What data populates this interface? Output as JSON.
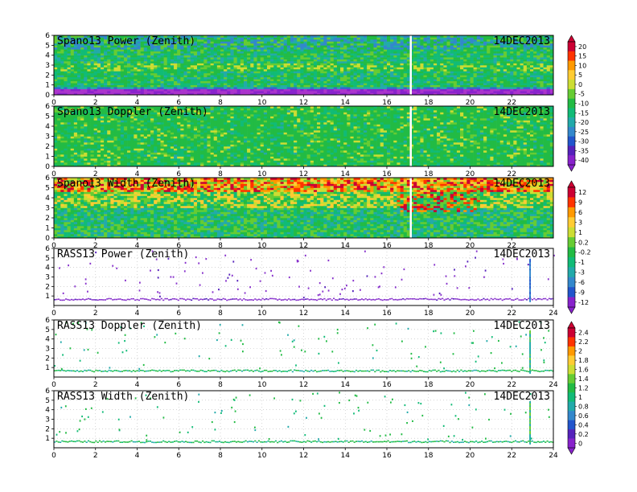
{
  "chart_data": [
    {
      "type": "heatmap",
      "title": "Spano13 Power (Zenith)",
      "date": "14DEC2013",
      "x_ticks": [
        "0",
        "2",
        "4",
        "6",
        "8",
        "10",
        "12",
        "14",
        "16",
        "18",
        "20",
        "22"
      ],
      "y_ticks": [
        "0",
        "1",
        "2",
        "3",
        "4",
        "5",
        "6"
      ],
      "xlim": [
        0,
        24
      ],
      "ylim": [
        0,
        6
      ],
      "profile": "power",
      "colorbar": 0
    },
    {
      "type": "heatmap",
      "title": "Spano13 Doppler (Zenith)",
      "date": "14DEC2013",
      "x_ticks": [
        "0",
        "2",
        "4",
        "6",
        "8",
        "10",
        "12",
        "14",
        "16",
        "18",
        "20",
        "22"
      ],
      "y_ticks": [
        "0",
        "1",
        "2",
        "3",
        "4",
        "5",
        "6"
      ],
      "xlim": [
        0,
        24
      ],
      "ylim": [
        0,
        6
      ],
      "profile": "doppler",
      "colorbar": 0
    },
    {
      "type": "heatmap",
      "title": "Spano13 Width (Zenith)",
      "date": "14DEC2013",
      "x_ticks": [
        "0",
        "2",
        "4",
        "6",
        "8",
        "10",
        "12",
        "14",
        "16",
        "18",
        "20",
        "22"
      ],
      "y_ticks": [
        "0",
        "1",
        "2",
        "3",
        "4",
        "5",
        "6"
      ],
      "xlim": [
        0,
        24
      ],
      "ylim": [
        0,
        6
      ],
      "profile": "width",
      "colorbar": 1
    },
    {
      "type": "scatter",
      "title": "RASS13 Power (Zenith)",
      "date": "14DEC2013",
      "x_ticks": [
        "0",
        "2",
        "4",
        "6",
        "8",
        "10",
        "12",
        "14",
        "16",
        "18",
        "20",
        "22",
        "24"
      ],
      "y_ticks": [
        "1",
        "2",
        "3",
        "4",
        "5",
        "6"
      ],
      "xlim": [
        0,
        24
      ],
      "ylim": [
        0,
        6
      ],
      "profile": "rass_power",
      "colorbar": 1
    },
    {
      "type": "scatter",
      "title": "RASS13 Doppler (Zenith)",
      "date": "14DEC2013",
      "x_ticks": [
        "0",
        "2",
        "4",
        "6",
        "8",
        "10",
        "12",
        "14",
        "16",
        "18",
        "20",
        "22",
        "24"
      ],
      "y_ticks": [
        "1",
        "2",
        "3",
        "4",
        "5",
        "6"
      ],
      "xlim": [
        0,
        24
      ],
      "ylim": [
        0,
        6
      ],
      "profile": "rass_doppler",
      "colorbar": 2
    },
    {
      "type": "scatter",
      "title": "RASS13 Width (Zenith)",
      "date": "14DEC2013",
      "x_ticks": [
        "0",
        "2",
        "4",
        "6",
        "8",
        "10",
        "12",
        "14",
        "16",
        "18",
        "20",
        "22",
        "24"
      ],
      "y_ticks": [
        "1",
        "2",
        "3",
        "4",
        "5",
        "6"
      ],
      "xlim": [
        0,
        24
      ],
      "ylim": [
        0,
        6
      ],
      "profile": "rass_width",
      "colorbar": 2
    }
  ],
  "colorbars": [
    {
      "labels": [
        "20",
        "15",
        "10",
        "5",
        "0",
        "-5",
        "-10",
        "-15",
        "-20",
        "-25",
        "-30",
        "-35",
        "-40"
      ],
      "colors": [
        "#cc0033",
        "#ff3300",
        "#ff9900",
        "#ffcc33",
        "#ccdd33",
        "#66cc33",
        "#22bb44",
        "#11bb77",
        "#22aaaa",
        "#3388cc",
        "#2255cc",
        "#5522bb",
        "#8822cc"
      ]
    },
    {
      "labels": [
        "12",
        "9",
        "6",
        "3",
        "1",
        "0.2",
        "-0.2",
        "-1",
        "-3",
        "-6",
        "-9",
        "-12"
      ],
      "colors": [
        "#cc0033",
        "#ff3300",
        "#ff9900",
        "#ffcc33",
        "#ccdd33",
        "#66cc33",
        "#22bb44",
        "#11bb77",
        "#22aaaa",
        "#3388cc",
        "#2255cc",
        "#8822cc"
      ]
    },
    {
      "labels": [
        "2.4",
        "2.2",
        "2",
        "1.8",
        "1.6",
        "1.4",
        "1.2",
        "1",
        "0.8",
        "0.6",
        "0.4",
        "0.2",
        "0"
      ],
      "colors": [
        "#cc0033",
        "#ff3300",
        "#ff9900",
        "#ffcc33",
        "#ccdd33",
        "#66cc33",
        "#22bb44",
        "#11bb77",
        "#22aaaa",
        "#3388cc",
        "#2255cc",
        "#5522bb",
        "#8822cc"
      ]
    }
  ]
}
